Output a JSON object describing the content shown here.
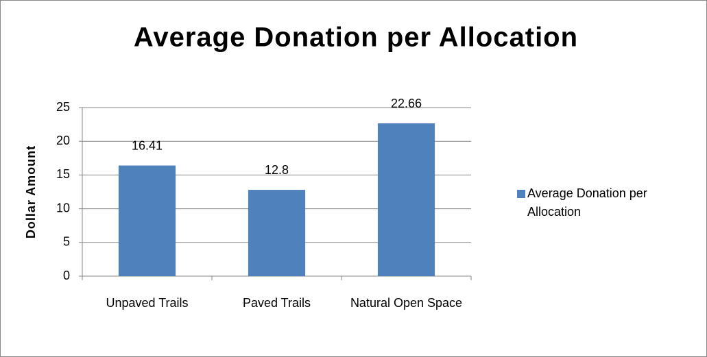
{
  "chart_data": {
    "type": "bar",
    "title": "Average Donation per Allocation",
    "y_label": "Dollar Amount",
    "categories": [
      "Unpaved Trails",
      "Paved Trails",
      "Natural Open Space"
    ],
    "series": [
      {
        "name": "Average Donation per Allocation",
        "color": "#4f81bd",
        "values": [
          16.41,
          12.8,
          22.66
        ]
      }
    ],
    "ylim": [
      0,
      25
    ],
    "yticks": [
      0,
      5,
      10,
      15,
      20,
      25
    ],
    "grid": true,
    "legend": "right"
  }
}
